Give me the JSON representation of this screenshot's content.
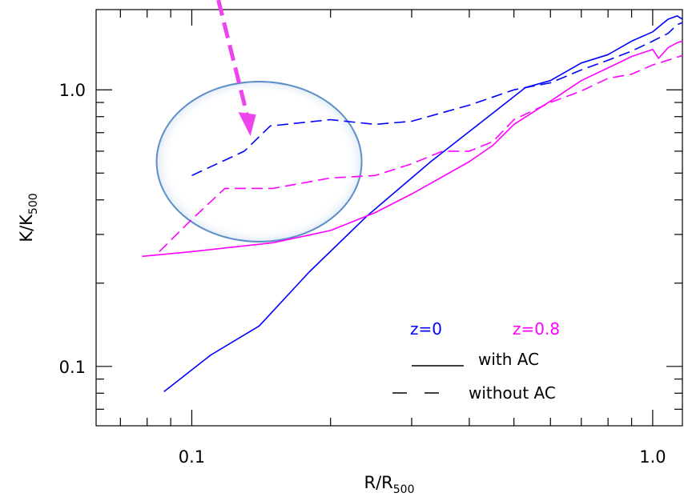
{
  "chart_data": {
    "type": "line",
    "xlabel_main": "R/R",
    "xlabel_sub": "500",
    "ylabel_main": "K/K",
    "ylabel_sub": "500",
    "xscale": "log",
    "yscale": "log",
    "xlim": [
      0.062,
      1.16
    ],
    "ylim": [
      0.061,
      1.95
    ],
    "x_ticks": [
      {
        "value": 0.1,
        "label": "0.1"
      },
      {
        "value": 1.0,
        "label": "1.0"
      }
    ],
    "y_ticks": [
      {
        "value": 0.1,
        "label": "0.1"
      },
      {
        "value": 1.0,
        "label": "1.0"
      }
    ],
    "x_minor_ticks": [
      0.07,
      0.08,
      0.09,
      0.2,
      0.3,
      0.4,
      0.5,
      0.6,
      0.7,
      0.8,
      0.9
    ],
    "y_minor_ticks": [
      0.07,
      0.08,
      0.09,
      0.2,
      0.3,
      0.4,
      0.5,
      0.6,
      0.7,
      0.8,
      0.9
    ],
    "grid": false,
    "colors": {
      "z0": "#0000ff",
      "z08": "#ff00ff",
      "circle": "#5b8fc7",
      "arrow": "#ee44ee"
    },
    "series": [
      {
        "name": "z=0 with AC",
        "color": "#0000ff",
        "dash": "solid",
        "x": [
          0.087,
          0.11,
          0.14,
          0.18,
          0.24,
          0.33,
          0.44,
          0.53,
          0.6,
          0.7,
          0.8,
          0.9,
          1.0,
          1.08,
          1.13,
          1.16
        ],
        "y": [
          0.081,
          0.11,
          0.14,
          0.22,
          0.35,
          0.55,
          0.8,
          1.02,
          1.08,
          1.25,
          1.34,
          1.5,
          1.62,
          1.8,
          1.85,
          1.8
        ]
      },
      {
        "name": "z=0 without AC",
        "color": "#0000ff",
        "dash": "dashed",
        "x": [
          0.1,
          0.13,
          0.148,
          0.2,
          0.25,
          0.3,
          0.4,
          0.5,
          0.6,
          0.7,
          0.8,
          0.9,
          1.0,
          1.08,
          1.13,
          1.16
        ],
        "y": [
          0.49,
          0.6,
          0.74,
          0.78,
          0.75,
          0.77,
          0.88,
          1.0,
          1.06,
          1.18,
          1.28,
          1.38,
          1.5,
          1.6,
          1.72,
          1.75
        ]
      },
      {
        "name": "z=0.8 with AC",
        "color": "#ff00ff",
        "dash": "solid",
        "x": [
          0.078,
          0.1,
          0.15,
          0.2,
          0.25,
          0.3,
          0.4,
          0.45,
          0.5,
          0.6,
          0.7,
          0.8,
          0.9,
          1.0,
          1.03,
          1.08,
          1.13,
          1.16
        ],
        "y": [
          0.25,
          0.26,
          0.28,
          0.31,
          0.36,
          0.42,
          0.55,
          0.63,
          0.75,
          0.91,
          1.08,
          1.2,
          1.32,
          1.4,
          1.3,
          1.42,
          1.48,
          1.5
        ]
      },
      {
        "name": "z=0.8 without AC",
        "color": "#ff00ff",
        "dash": "dashed",
        "x": [
          0.085,
          0.1,
          0.118,
          0.15,
          0.2,
          0.25,
          0.3,
          0.35,
          0.4,
          0.45,
          0.5,
          0.6,
          0.7,
          0.8,
          0.9,
          1.0,
          1.08,
          1.16
        ],
        "y": [
          0.26,
          0.34,
          0.44,
          0.44,
          0.48,
          0.49,
          0.54,
          0.6,
          0.6,
          0.65,
          0.78,
          0.9,
          0.99,
          1.1,
          1.14,
          1.23,
          1.28,
          1.33
        ]
      }
    ],
    "legend": {
      "placement": "bottom-right",
      "z0_label": "z=0",
      "z08_label": "z=0.8",
      "solid_label": "with AC",
      "dashed_label": "without AC"
    },
    "annotations": {
      "circle_center": {
        "x": 0.14,
        "y": 0.55
      },
      "arrow_head": {
        "x": 0.134,
        "y": 0.68
      }
    }
  }
}
